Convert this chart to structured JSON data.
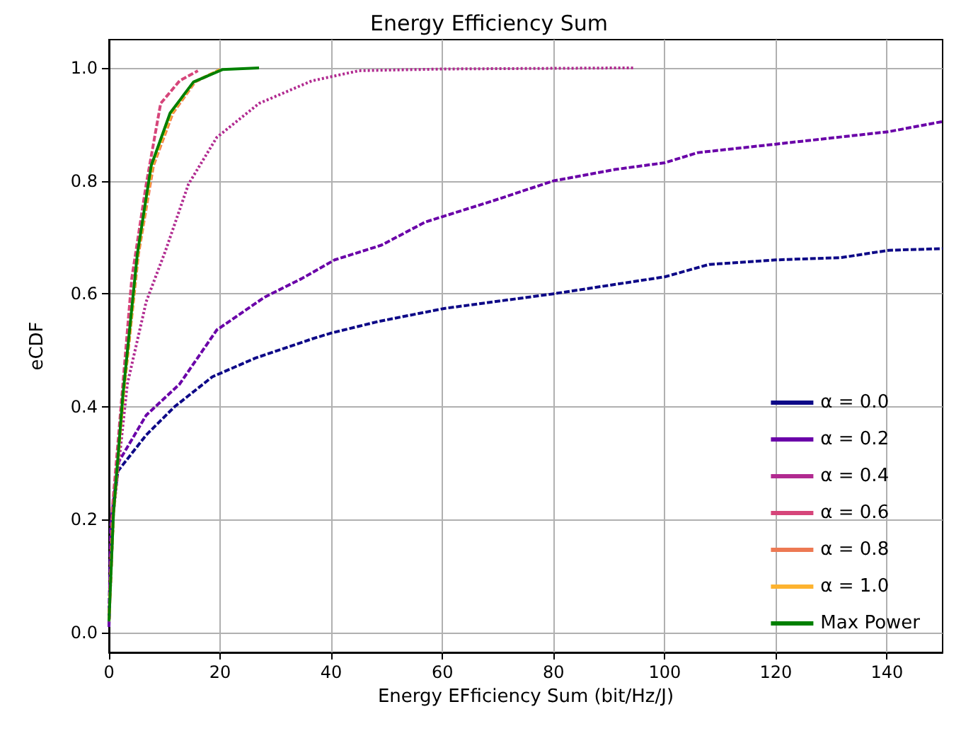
{
  "chart_data": {
    "type": "line",
    "title": "Energy Efficiency Sum",
    "xlabel": "Energy EFficiency Sum (bit/Hz/J)",
    "ylabel": "eCDF",
    "xlim": [
      0,
      150
    ],
    "xticks": [
      0,
      20,
      40,
      60,
      80,
      100,
      120,
      140
    ],
    "ylim": [
      -0.035,
      1.05
    ],
    "yticks": [
      {
        "value": 0,
        "label": "0.0"
      },
      {
        "value": 0.2,
        "label": "0.2"
      },
      {
        "value": 0.4,
        "label": "0.4"
      },
      {
        "value": 0.6,
        "label": "0.6"
      },
      {
        "value": 0.8,
        "label": "0.8"
      },
      {
        "value": 1,
        "label": "1.0"
      }
    ],
    "grid": true,
    "legend": "bottom right",
    "marker": "none",
    "series": [
      {
        "name": "α = 0.0",
        "color": "#0d0887",
        "line_style": "dashed",
        "x": [
          0,
          0.3,
          1.6,
          6.7,
          11.8,
          18.6,
          26.3,
          36.5,
          39.8,
          48.5,
          60.3,
          80,
          100,
          108,
          120,
          131.7,
          140.3,
          150
        ],
        "values": [
          0.01,
          0.18,
          0.286,
          0.35,
          0.4,
          0.453,
          0.486,
          0.52,
          0.53,
          0.551,
          0.574,
          0.6,
          0.63,
          0.652,
          0.66,
          0.664,
          0.677,
          0.68
        ]
      },
      {
        "name": "α = 0.2",
        "color": "#6a00a8",
        "line_style": "dashed",
        "x": [
          0,
          0.3,
          1.6,
          6.7,
          12.7,
          19.4,
          28,
          34.7,
          40.6,
          49,
          56.9,
          68.9,
          80,
          91,
          100,
          106,
          120,
          140.3,
          150
        ],
        "values": [
          0.01,
          0.19,
          0.3,
          0.385,
          0.44,
          0.536,
          0.594,
          0.627,
          0.66,
          0.686,
          0.727,
          0.764,
          0.8,
          0.82,
          0.832,
          0.85,
          0.865,
          0.887,
          0.905
        ]
      },
      {
        "name": "α = 0.4",
        "color": "#b12a90",
        "line_style": "dotted",
        "x": [
          0,
          0.8,
          3.3,
          6.7,
          10.2,
          14.3,
          19.4,
          27,
          36.5,
          45,
          60,
          94.4
        ],
        "values": [
          0.02,
          0.21,
          0.44,
          0.586,
          0.677,
          0.794,
          0.877,
          0.937,
          0.977,
          0.995,
          0.998,
          1.0
        ]
      },
      {
        "name": "α = 0.6",
        "color": "#d6457a",
        "line_style": "dashed",
        "x": [
          0,
          0.6,
          1.6,
          4.1,
          6.7,
          9.3,
          12.7,
          16
        ],
        "values": [
          0.02,
          0.22,
          0.335,
          0.627,
          0.794,
          0.937,
          0.977,
          0.995
        ]
      },
      {
        "name": "α = 0.8",
        "color": "#ed7953",
        "line_style": "dashed",
        "x": [
          0,
          0.8,
          2.6,
          5.3,
          8,
          11.5,
          15.5,
          20
        ],
        "values": [
          0.02,
          0.21,
          0.42,
          0.67,
          0.827,
          0.92,
          0.975,
          0.997
        ]
      },
      {
        "name": "α = 1.0",
        "color": "#fdb32f",
        "line_style": "dashed",
        "x": [
          0,
          0.8,
          2.6,
          5.2,
          7.8,
          11.3,
          15.3,
          20
        ],
        "values": [
          0.02,
          0.21,
          0.42,
          0.67,
          0.827,
          0.92,
          0.975,
          0.997
        ]
      },
      {
        "name": "Max Power",
        "color": "#008000",
        "line_style": "solid",
        "x": [
          0,
          0.8,
          2.5,
          5.1,
          7.6,
          11,
          15.2,
          20.4,
          27
        ],
        "values": [
          0.02,
          0.21,
          0.42,
          0.67,
          0.827,
          0.92,
          0.975,
          0.997,
          1.0
        ]
      }
    ]
  }
}
